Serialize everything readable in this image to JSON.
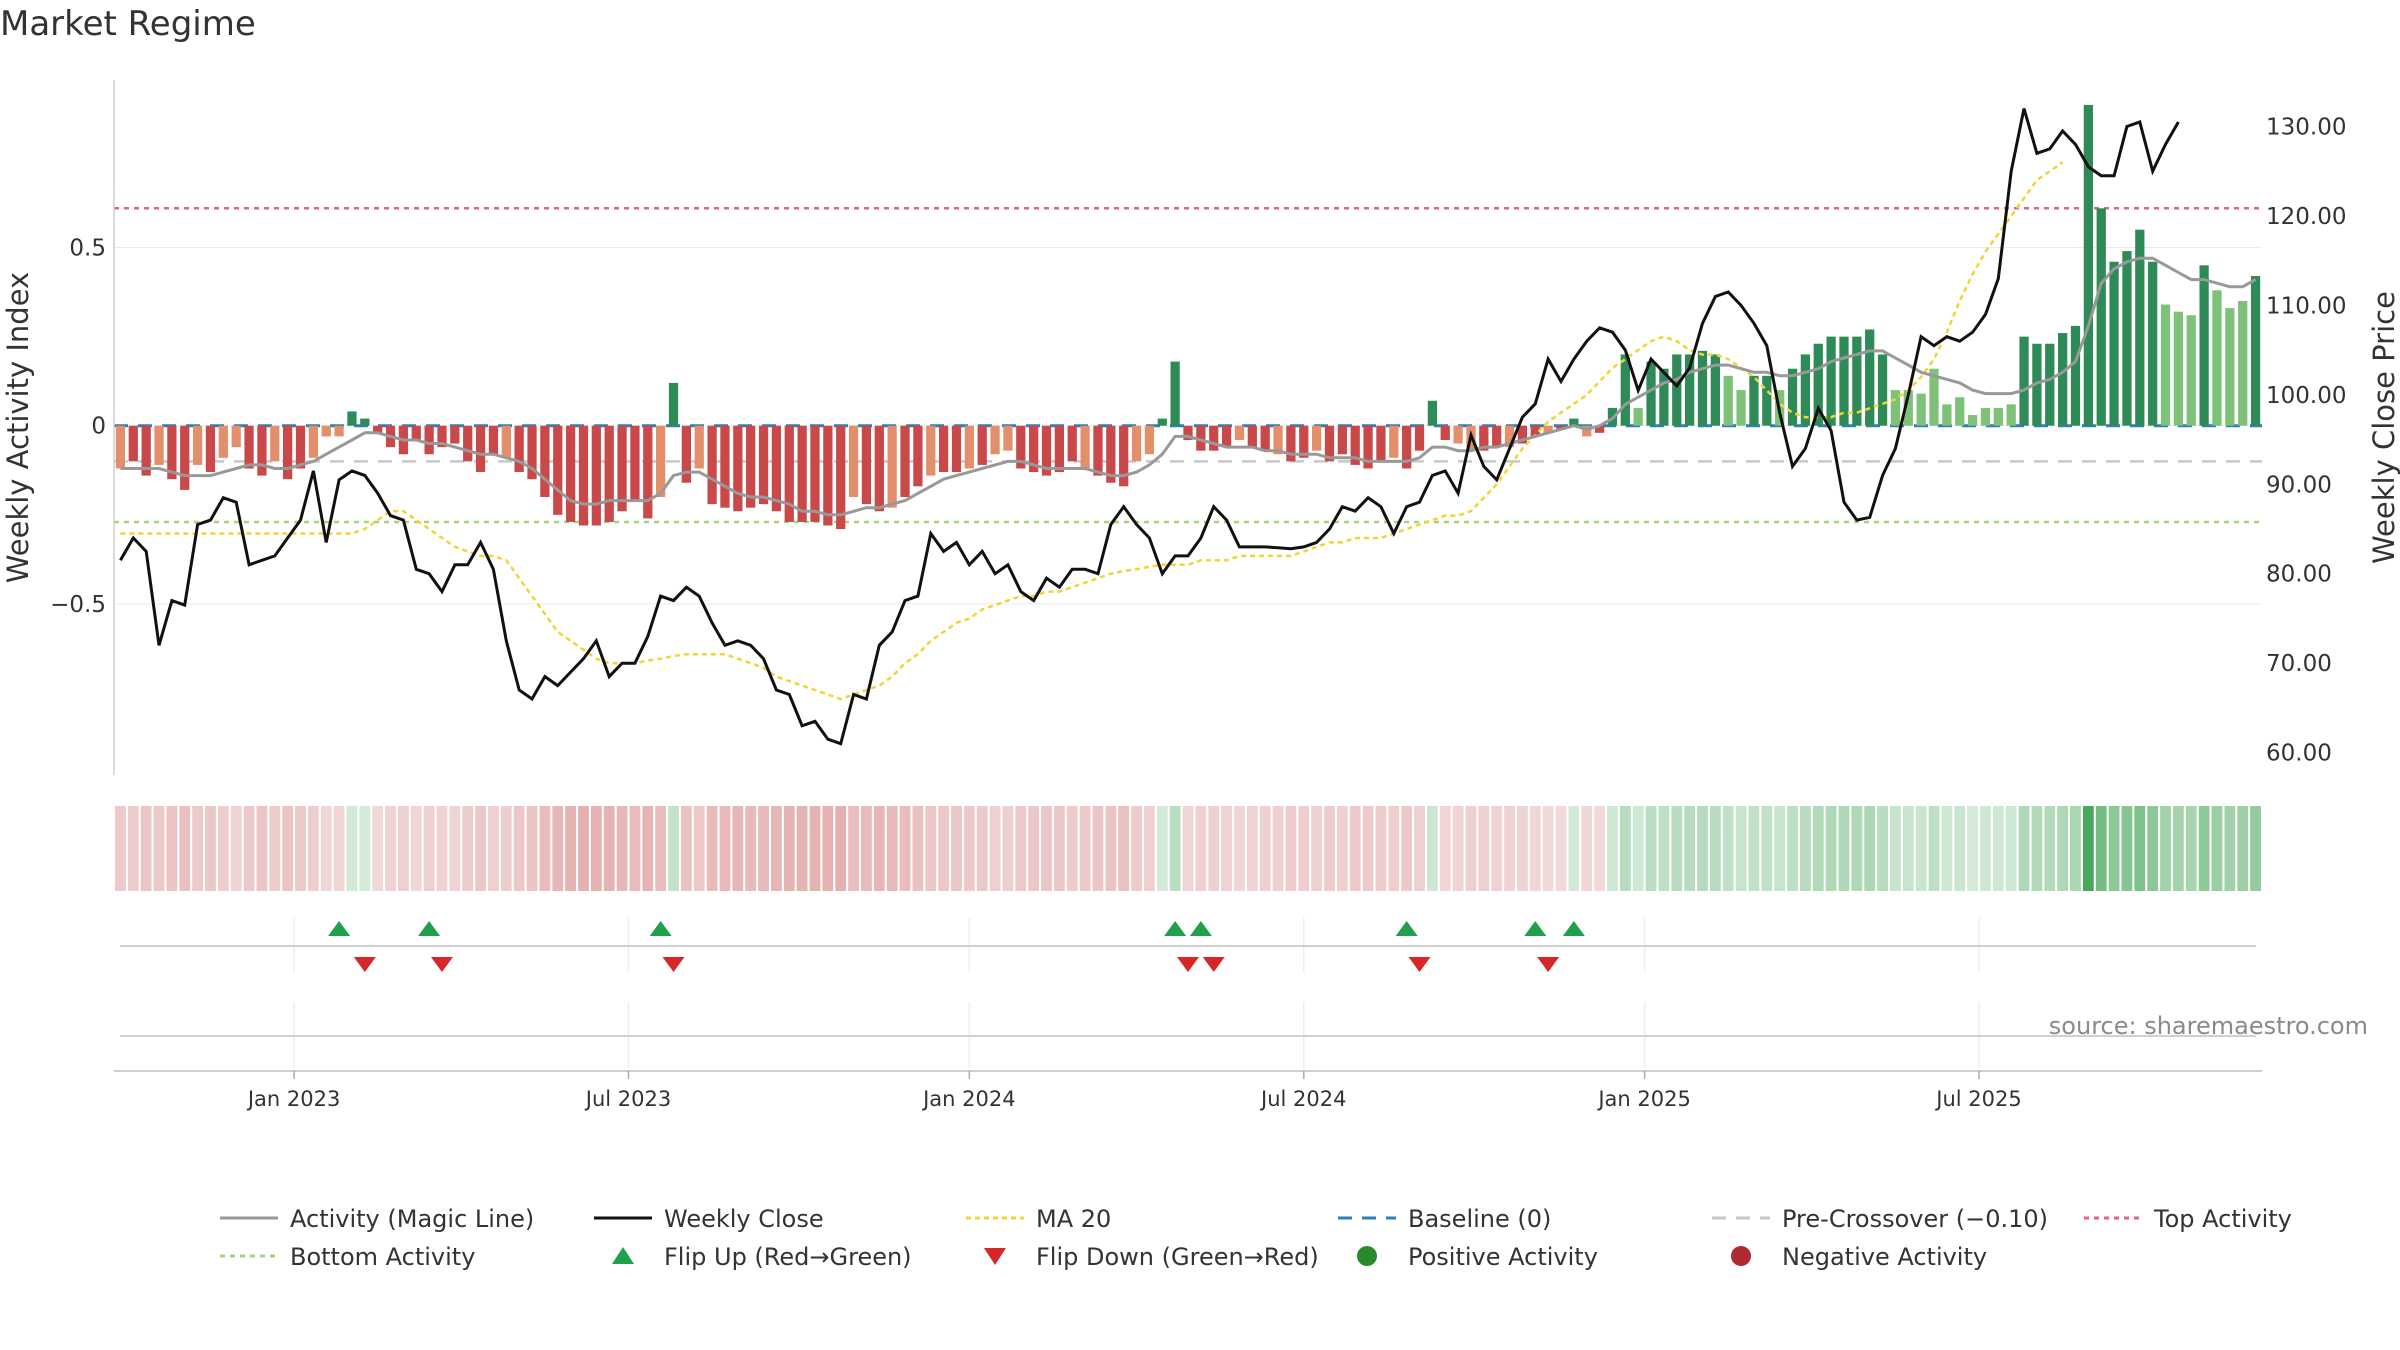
{
  "title": "Market Regime",
  "source": "source: sharemaestro.com",
  "colors": {
    "neg_strong": "#c9484a",
    "neg_light": "#e48f6c",
    "pos_strong": "#2e8b57",
    "pos_light": "#7ec27a",
    "magic": "#999999",
    "close": "#111111",
    "ma": "#f2d434",
    "baseline": "#2d7fb8",
    "pre_cross": "#c8c8c8",
    "top": "#e3637e",
    "bottom": "#a5d67c",
    "flip_up": "#1fa04a",
    "flip_down": "#d7262a"
  },
  "chart_data": {
    "type": "bar",
    "title": "Market Regime",
    "y_left": {
      "label": "Weekly Activity Index",
      "range": [
        -0.98,
        0.97
      ],
      "ticks": [
        -0.5,
        0,
        0.5
      ],
      "tick_labels": [
        "−0.5",
        "0",
        "0.5"
      ]
    },
    "y_right": {
      "label": "Weekly Close Price",
      "range": [
        57.5,
        135.2
      ],
      "ticks": [
        60,
        70,
        80,
        90,
        100,
        110,
        120,
        130
      ],
      "tick_labels": [
        "60.00",
        "70.00",
        "80.00",
        "90.00",
        "100.00",
        "110.00",
        "120.00",
        "130.00"
      ]
    },
    "x_ticks": [
      {
        "label": "Jan 2023",
        "week": 14
      },
      {
        "label": "Jul 2023",
        "week": 40
      },
      {
        "label": "Jan 2024",
        "week": 66.5
      },
      {
        "label": "Jul 2024",
        "week": 92.5
      },
      {
        "label": "Jan 2025",
        "week": 119
      },
      {
        "label": "Jul 2025",
        "week": 145
      }
    ],
    "levels": {
      "baseline": 0,
      "pre_crossover": -0.1,
      "top_activity": 0.61,
      "bottom_activity": -0.27
    },
    "activity": [
      -0.12,
      -0.1,
      -0.14,
      -0.11,
      -0.15,
      -0.18,
      -0.11,
      -0.13,
      -0.09,
      -0.06,
      -0.12,
      -0.14,
      -0.1,
      -0.15,
      -0.12,
      -0.09,
      -0.03,
      -0.03,
      0.04,
      0.02,
      -0.02,
      -0.06,
      -0.08,
      -0.04,
      -0.08,
      -0.06,
      -0.05,
      -0.1,
      -0.13,
      -0.08,
      -0.09,
      -0.13,
      -0.15,
      -0.2,
      -0.25,
      -0.27,
      -0.28,
      -0.28,
      -0.27,
      -0.24,
      -0.21,
      -0.26,
      -0.2,
      0.12,
      -0.16,
      -0.12,
      -0.22,
      -0.23,
      -0.24,
      -0.23,
      -0.22,
      -0.24,
      -0.27,
      -0.27,
      -0.27,
      -0.28,
      -0.29,
      -0.2,
      -0.22,
      -0.24,
      -0.23,
      -0.2,
      -0.17,
      -0.14,
      -0.13,
      -0.13,
      -0.12,
      -0.11,
      -0.08,
      -0.07,
      -0.12,
      -0.13,
      -0.14,
      -0.13,
      -0.1,
      -0.12,
      -0.14,
      -0.16,
      -0.17,
      -0.1,
      -0.08,
      0.02,
      0.18,
      -0.04,
      -0.07,
      -0.07,
      -0.06,
      -0.04,
      -0.06,
      -0.07,
      -0.08,
      -0.1,
      -0.09,
      -0.07,
      -0.1,
      -0.08,
      -0.11,
      -0.12,
      -0.1,
      -0.09,
      -0.12,
      -0.07,
      0.07,
      -0.04,
      -0.05,
      -0.07,
      -0.07,
      -0.06,
      -0.06,
      -0.05,
      -0.03,
      -0.02,
      -0.01,
      0.02,
      -0.03,
      -0.02,
      0.05,
      0.2,
      0.05,
      0.18,
      0.16,
      0.2,
      0.2,
      0.21,
      0.2,
      0.14,
      0.1,
      0.14,
      0.14,
      0.1,
      0.16,
      0.2,
      0.23,
      0.25,
      0.25,
      0.25,
      0.27,
      0.2,
      0.1,
      0.1,
      0.09,
      0.16,
      0.06,
      0.08,
      0.03,
      0.05,
      0.05,
      0.06,
      0.25,
      0.23,
      0.23,
      0.26,
      0.28,
      0.9,
      0.61,
      0.46,
      0.49,
      0.55,
      0.46,
      0.34,
      0.32,
      0.31,
      0.45,
      0.38,
      0.33,
      0.35,
      0.42
    ],
    "magic_line": [
      -0.12,
      -0.12,
      -0.12,
      -0.12,
      -0.13,
      -0.14,
      -0.14,
      -0.14,
      -0.13,
      -0.12,
      -0.11,
      -0.11,
      -0.12,
      -0.12,
      -0.11,
      -0.1,
      -0.08,
      -0.06,
      -0.04,
      -0.02,
      -0.02,
      -0.03,
      -0.04,
      -0.04,
      -0.05,
      -0.05,
      -0.06,
      -0.07,
      -0.08,
      -0.08,
      -0.09,
      -0.1,
      -0.12,
      -0.15,
      -0.18,
      -0.21,
      -0.22,
      -0.22,
      -0.21,
      -0.21,
      -0.21,
      -0.21,
      -0.19,
      -0.14,
      -0.13,
      -0.13,
      -0.15,
      -0.17,
      -0.19,
      -0.2,
      -0.2,
      -0.21,
      -0.22,
      -0.24,
      -0.24,
      -0.25,
      -0.25,
      -0.24,
      -0.23,
      -0.23,
      -0.22,
      -0.21,
      -0.19,
      -0.17,
      -0.15,
      -0.14,
      -0.13,
      -0.12,
      -0.11,
      -0.1,
      -0.1,
      -0.11,
      -0.12,
      -0.12,
      -0.12,
      -0.12,
      -0.13,
      -0.14,
      -0.14,
      -0.13,
      -0.11,
      -0.08,
      -0.03,
      -0.03,
      -0.04,
      -0.05,
      -0.06,
      -0.06,
      -0.06,
      -0.07,
      -0.07,
      -0.08,
      -0.08,
      -0.08,
      -0.09,
      -0.09,
      -0.09,
      -0.1,
      -0.1,
      -0.1,
      -0.1,
      -0.09,
      -0.06,
      -0.06,
      -0.07,
      -0.07,
      -0.06,
      -0.06,
      -0.05,
      -0.04,
      -0.03,
      -0.02,
      -0.01,
      0.0,
      -0.01,
      0.0,
      0.02,
      0.06,
      0.08,
      0.1,
      0.12,
      0.13,
      0.15,
      0.16,
      0.17,
      0.17,
      0.16,
      0.15,
      0.15,
      0.14,
      0.14,
      0.15,
      0.16,
      0.18,
      0.19,
      0.2,
      0.21,
      0.21,
      0.19,
      0.17,
      0.15,
      0.14,
      0.13,
      0.12,
      0.1,
      0.09,
      0.09,
      0.09,
      0.1,
      0.12,
      0.13,
      0.15,
      0.18,
      0.28,
      0.4,
      0.44,
      0.46,
      0.47,
      0.47,
      0.45,
      0.43,
      0.41,
      0.41,
      0.4,
      0.39,
      0.39,
      0.41
    ],
    "weekly_close": [
      81.5,
      84.0,
      82.5,
      72.0,
      77.0,
      76.5,
      85.5,
      86.0,
      88.5,
      88.0,
      81.0,
      81.5,
      82.0,
      84.0,
      86.0,
      91.5,
      83.5,
      90.5,
      91.5,
      91.0,
      89.0,
      86.5,
      86.0,
      80.5,
      80.0,
      78.0,
      81.0,
      81.0,
      83.5,
      80.5,
      72.5,
      67.0,
      66.0,
      68.5,
      67.5,
      69.0,
      70.5,
      72.5,
      68.5,
      70.0,
      70.0,
      73.0,
      77.5,
      77.0,
      78.5,
      77.5,
      74.5,
      72.0,
      72.5,
      72.0,
      70.5,
      67.0,
      66.5,
      63.0,
      63.5,
      61.5,
      61.0,
      66.5,
      66.0,
      72.0,
      73.5,
      77.0,
      77.5,
      84.5,
      82.5,
      83.5,
      81.0,
      82.5,
      80.0,
      81.0,
      78.0,
      77.0,
      79.5,
      78.5,
      80.5,
      80.5,
      80.0,
      85.5,
      87.5,
      85.5,
      84.0,
      80.0,
      82.0,
      82.0,
      84.0,
      87.5,
      86.0,
      83.0,
      83.0,
      83.0,
      82.9,
      82.8,
      83.0,
      83.5,
      85.0,
      87.5,
      87.0,
      88.5,
      87.5,
      84.5,
      87.5,
      88.0,
      91.0,
      91.5,
      89.0,
      95.5,
      92.0,
      90.5,
      94.0,
      97.5,
      99.0,
      104.0,
      101.5,
      104.0,
      106.0,
      107.5,
      107.0,
      105.0,
      100.5,
      104.0,
      102.5,
      101.0,
      103.0,
      108.0,
      111.0,
      111.5,
      110.0,
      108.0,
      105.5,
      98.0,
      92.0,
      94.0,
      98.5,
      96.0,
      88.0,
      86.0,
      86.3,
      91.0,
      94.0,
      100.0,
      106.5,
      105.5,
      106.5,
      106.0,
      107.0,
      109.0,
      113.0,
      125.0,
      132.0,
      127.0,
      127.5,
      129.5,
      128.0,
      125.5,
      124.5,
      124.5,
      130.0,
      130.5,
      125.0,
      128.0,
      130.5
    ],
    "ma20": [
      84.5,
      84.5,
      84.5,
      84.5,
      84.5,
      84.5,
      84.5,
      84.5,
      84.5,
      84.5,
      84.5,
      84.5,
      84.5,
      84.5,
      84.5,
      84.5,
      84.5,
      84.5,
      84.5,
      85.0,
      86.0,
      87.0,
      87.0,
      86.0,
      85.0,
      84.0,
      83.0,
      82.5,
      82.0,
      82.0,
      81.5,
      79.5,
      77.5,
      75.5,
      73.5,
      72.5,
      71.5,
      70.5,
      70.0,
      70.0,
      70.0,
      70.3,
      70.5,
      70.8,
      71.0,
      71.0,
      71.0,
      71.0,
      70.5,
      70.0,
      69.5,
      68.5,
      68.0,
      67.5,
      67.0,
      66.5,
      66.0,
      66.5,
      67.0,
      67.5,
      68.5,
      70.0,
      71.0,
      72.5,
      73.5,
      74.5,
      75.0,
      76.0,
      76.5,
      77.0,
      77.5,
      77.5,
      78.0,
      78.0,
      78.5,
      79.0,
      79.5,
      80.0,
      80.3,
      80.5,
      80.8,
      81.0,
      81.0,
      81.0,
      81.5,
      81.5,
      81.5,
      82.0,
      82.0,
      82.0,
      82.0,
      82.0,
      82.5,
      83.0,
      83.5,
      83.5,
      84.0,
      84.0,
      84.0,
      84.5,
      85.0,
      85.5,
      86.0,
      86.5,
      86.5,
      87.0,
      88.5,
      90.0,
      92.0,
      94.0,
      95.5,
      97.0,
      98.0,
      99.0,
      100.0,
      101.5,
      103.0,
      104.0,
      105.0,
      106.0,
      106.5,
      106.0,
      105.0,
      104.5,
      104.5,
      104.0,
      103.0,
      102.0,
      100.5,
      99.0,
      98.0,
      97.5,
      97.5,
      97.5,
      98.0,
      98.0,
      98.5,
      99.0,
      99.5,
      100.5,
      102.0,
      104.0,
      107.0,
      110.5,
      113.5,
      116.0,
      118.0,
      120.0,
      122.0,
      124.0,
      125.0,
      126.0
    ],
    "flip_up_weeks": [
      17,
      24,
      42,
      82,
      84,
      100,
      110,
      113
    ],
    "flip_down_weeks": [
      19,
      25,
      43,
      83,
      85,
      101,
      111
    ],
    "legend": [
      {
        "label": "Activity (Magic Line)",
        "symbol": "line-gray"
      },
      {
        "label": "Weekly Close",
        "symbol": "line-black"
      },
      {
        "label": "MA 20",
        "symbol": "dotted-yellow"
      },
      {
        "label": "Baseline (0)",
        "symbol": "dashed-blue"
      },
      {
        "label": "Pre-Crossover (−0.10)",
        "symbol": "dashed-gray"
      },
      {
        "label": "Top Activity",
        "symbol": "dotted-pink"
      },
      {
        "label": "Bottom Activity",
        "symbol": "dotted-green"
      },
      {
        "label": "Flip Up (Red→Green)",
        "symbol": "triangle-up-green"
      },
      {
        "label": "Flip Down (Green→Red)",
        "symbol": "triangle-down-red"
      },
      {
        "label": "Positive Activity",
        "symbol": "circle-green"
      },
      {
        "label": "Negative Activity",
        "symbol": "circle-red"
      }
    ]
  }
}
